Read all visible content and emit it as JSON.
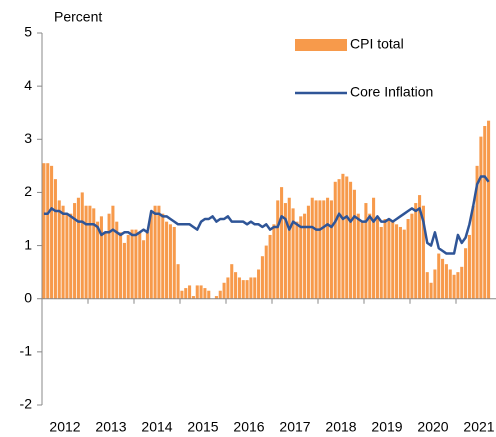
{
  "chart_data": {
    "type": "bar-line",
    "y_label": "Percent",
    "categories": [
      "2012",
      null,
      null,
      null,
      null,
      null,
      null,
      null,
      null,
      null,
      null,
      null,
      "2013",
      null,
      null,
      null,
      null,
      null,
      null,
      null,
      null,
      null,
      null,
      null,
      "2014",
      null,
      null,
      null,
      null,
      null,
      null,
      null,
      null,
      null,
      null,
      null,
      "2015",
      null,
      null,
      null,
      null,
      null,
      null,
      null,
      null,
      null,
      null,
      null,
      "2016",
      null,
      null,
      null,
      null,
      null,
      null,
      null,
      null,
      null,
      null,
      null,
      "2017",
      null,
      null,
      null,
      null,
      null,
      null,
      null,
      null,
      null,
      null,
      null,
      "2018",
      null,
      null,
      null,
      null,
      null,
      null,
      null,
      null,
      null,
      null,
      null,
      "2019",
      null,
      null,
      null,
      null,
      null,
      null,
      null,
      null,
      null,
      null,
      null,
      "2020",
      null,
      null,
      null,
      null,
      null,
      null,
      null,
      null,
      null,
      null,
      null,
      "2021",
      null,
      null,
      null,
      null,
      null,
      null,
      null,
      null
    ],
    "series": [
      {
        "name": "CPI total",
        "kind": "bar",
        "color": "#f79a4b",
        "values": [
          2.55,
          2.55,
          2.5,
          2.25,
          1.85,
          1.75,
          1.6,
          1.6,
          1.8,
          1.9,
          2.0,
          1.75,
          1.75,
          1.7,
          1.45,
          1.55,
          1.25,
          1.6,
          1.75,
          1.45,
          1.25,
          1.05,
          1.2,
          1.3,
          1.3,
          1.25,
          1.1,
          1.25,
          1.6,
          1.75,
          1.75,
          1.6,
          1.45,
          1.4,
          1.35,
          0.65,
          0.15,
          0.2,
          0.25,
          0.05,
          0.25,
          0.25,
          0.2,
          0.15,
          0.0,
          0.05,
          0.15,
          0.3,
          0.4,
          0.65,
          0.5,
          0.4,
          0.35,
          0.35,
          0.4,
          0.4,
          0.55,
          0.8,
          1.0,
          1.2,
          1.4,
          1.85,
          2.1,
          1.8,
          1.9,
          1.7,
          1.45,
          1.55,
          1.6,
          1.75,
          1.9,
          1.85,
          1.85,
          1.85,
          1.9,
          1.85,
          2.2,
          2.25,
          2.35,
          2.3,
          2.2,
          2.05,
          1.6,
          1.45,
          1.8,
          1.6,
          1.9,
          1.55,
          1.35,
          1.5,
          1.5,
          1.45,
          1.4,
          1.35,
          1.3,
          1.5,
          1.6,
          1.8,
          1.95,
          1.75,
          0.5,
          0.3,
          0.55,
          0.85,
          0.75,
          0.65,
          0.55,
          0.45,
          0.5,
          0.6,
          0.95,
          1.2,
          1.75,
          2.5,
          3.05,
          3.25,
          3.35
        ]
      },
      {
        "name": "Core Inflation",
        "kind": "line",
        "color": "#2f5597",
        "values": [
          1.6,
          1.6,
          1.7,
          1.65,
          1.65,
          1.6,
          1.6,
          1.55,
          1.5,
          1.45,
          1.45,
          1.4,
          1.4,
          1.4,
          1.35,
          1.2,
          1.25,
          1.25,
          1.3,
          1.25,
          1.2,
          1.25,
          1.25,
          1.2,
          1.2,
          1.25,
          1.3,
          1.25,
          1.65,
          1.6,
          1.6,
          1.55,
          1.55,
          1.5,
          1.45,
          1.4,
          1.4,
          1.4,
          1.4,
          1.35,
          1.3,
          1.45,
          1.5,
          1.5,
          1.55,
          1.45,
          1.5,
          1.5,
          1.55,
          1.45,
          1.45,
          1.45,
          1.45,
          1.4,
          1.45,
          1.4,
          1.4,
          1.35,
          1.4,
          1.3,
          1.35,
          1.35,
          1.55,
          1.5,
          1.3,
          1.45,
          1.4,
          1.35,
          1.35,
          1.35,
          1.35,
          1.3,
          1.3,
          1.35,
          1.4,
          1.35,
          1.45,
          1.6,
          1.5,
          1.55,
          1.45,
          1.55,
          1.5,
          1.45,
          1.45,
          1.55,
          1.45,
          1.55,
          1.45,
          1.45,
          1.5,
          1.45,
          1.5,
          1.55,
          1.6,
          1.65,
          1.7,
          1.65,
          1.7,
          1.45,
          1.05,
          1.0,
          1.25,
          0.95,
          0.9,
          0.85,
          0.85,
          0.85,
          1.2,
          1.05,
          1.15,
          1.4,
          1.75,
          2.15,
          2.3,
          2.3,
          2.2
        ]
      }
    ],
    "ylim": [
      -2,
      5
    ],
    "yticks": [
      -2,
      -1,
      0,
      1,
      2,
      3,
      4,
      5
    ],
    "legend": "top-right"
  }
}
